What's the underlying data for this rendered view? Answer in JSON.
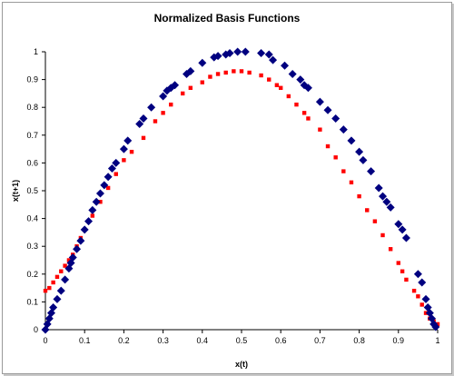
{
  "chart_data": {
    "type": "scatter",
    "title": "Normalized Basis Functions",
    "xlabel": "x(t)",
    "ylabel": "x(t+1)",
    "xlim": [
      0,
      1
    ],
    "ylim": [
      0,
      1
    ],
    "x_ticks": [
      "0",
      "0.1",
      "0.2",
      "0.3",
      "0.4",
      "0.5",
      "0.6",
      "0.7",
      "0.8",
      "0.9",
      "1"
    ],
    "y_ticks": [
      "0",
      "0.1",
      "0.2",
      "0.3",
      "0.4",
      "0.5",
      "0.6",
      "0.7",
      "0.8",
      "0.9",
      "1"
    ],
    "grid": false,
    "legend": "none",
    "series": [
      {
        "marker": "diamond",
        "color": "#000080",
        "points": [
          [
            0.0,
            0.0
          ],
          [
            0.005,
            0.02
          ],
          [
            0.01,
            0.04
          ],
          [
            0.015,
            0.06
          ],
          [
            0.02,
            0.08
          ],
          [
            0.03,
            0.11
          ],
          [
            0.04,
            0.14
          ],
          [
            0.05,
            0.18
          ],
          [
            0.06,
            0.22
          ],
          [
            0.065,
            0.24
          ],
          [
            0.07,
            0.26
          ],
          [
            0.08,
            0.29
          ],
          [
            0.09,
            0.32
          ],
          [
            0.1,
            0.36
          ],
          [
            0.11,
            0.39
          ],
          [
            0.12,
            0.43
          ],
          [
            0.13,
            0.46
          ],
          [
            0.14,
            0.49
          ],
          [
            0.15,
            0.52
          ],
          [
            0.16,
            0.55
          ],
          [
            0.17,
            0.58
          ],
          [
            0.18,
            0.6
          ],
          [
            0.2,
            0.65
          ],
          [
            0.21,
            0.68
          ],
          [
            0.24,
            0.74
          ],
          [
            0.25,
            0.76
          ],
          [
            0.27,
            0.8
          ],
          [
            0.3,
            0.84
          ],
          [
            0.31,
            0.86
          ],
          [
            0.32,
            0.87
          ],
          [
            0.33,
            0.88
          ],
          [
            0.36,
            0.92
          ],
          [
            0.37,
            0.93
          ],
          [
            0.4,
            0.96
          ],
          [
            0.43,
            0.98
          ],
          [
            0.44,
            0.985
          ],
          [
            0.46,
            0.99
          ],
          [
            0.47,
            0.995
          ],
          [
            0.49,
            1.0
          ],
          [
            0.51,
            1.0
          ],
          [
            0.55,
            0.995
          ],
          [
            0.57,
            0.99
          ],
          [
            0.58,
            0.97
          ],
          [
            0.61,
            0.95
          ],
          [
            0.63,
            0.92
          ],
          [
            0.65,
            0.9
          ],
          [
            0.66,
            0.88
          ],
          [
            0.67,
            0.87
          ],
          [
            0.7,
            0.82
          ],
          [
            0.72,
            0.79
          ],
          [
            0.74,
            0.76
          ],
          [
            0.76,
            0.72
          ],
          [
            0.78,
            0.68
          ],
          [
            0.8,
            0.64
          ],
          [
            0.81,
            0.61
          ],
          [
            0.83,
            0.57
          ],
          [
            0.85,
            0.51
          ],
          [
            0.86,
            0.48
          ],
          [
            0.87,
            0.46
          ],
          [
            0.88,
            0.44
          ],
          [
            0.9,
            0.38
          ],
          [
            0.91,
            0.36
          ],
          [
            0.92,
            0.33
          ],
          [
            0.95,
            0.2
          ],
          [
            0.96,
            0.17
          ],
          [
            0.97,
            0.11
          ],
          [
            0.975,
            0.08
          ],
          [
            0.98,
            0.06
          ],
          [
            0.985,
            0.04
          ],
          [
            0.99,
            0.02
          ],
          [
            0.995,
            0.01
          ]
        ]
      },
      {
        "marker": "square",
        "color": "#ff0000",
        "points": [
          [
            0.0,
            0.14
          ],
          [
            0.01,
            0.15
          ],
          [
            0.02,
            0.17
          ],
          [
            0.03,
            0.19
          ],
          [
            0.04,
            0.21
          ],
          [
            0.05,
            0.23
          ],
          [
            0.06,
            0.25
          ],
          [
            0.07,
            0.27
          ],
          [
            0.08,
            0.3
          ],
          [
            0.09,
            0.33
          ],
          [
            0.1,
            0.36
          ],
          [
            0.12,
            0.41
          ],
          [
            0.14,
            0.46
          ],
          [
            0.16,
            0.51
          ],
          [
            0.18,
            0.56
          ],
          [
            0.2,
            0.61
          ],
          [
            0.22,
            0.64
          ],
          [
            0.25,
            0.69
          ],
          [
            0.28,
            0.75
          ],
          [
            0.3,
            0.78
          ],
          [
            0.32,
            0.81
          ],
          [
            0.35,
            0.85
          ],
          [
            0.37,
            0.87
          ],
          [
            0.4,
            0.89
          ],
          [
            0.42,
            0.91
          ],
          [
            0.44,
            0.92
          ],
          [
            0.46,
            0.925
          ],
          [
            0.48,
            0.93
          ],
          [
            0.5,
            0.93
          ],
          [
            0.52,
            0.925
          ],
          [
            0.55,
            0.915
          ],
          [
            0.57,
            0.9
          ],
          [
            0.59,
            0.88
          ],
          [
            0.6,
            0.87
          ],
          [
            0.62,
            0.84
          ],
          [
            0.64,
            0.81
          ],
          [
            0.66,
            0.78
          ],
          [
            0.67,
            0.76
          ],
          [
            0.7,
            0.72
          ],
          [
            0.72,
            0.66
          ],
          [
            0.74,
            0.62
          ],
          [
            0.76,
            0.57
          ],
          [
            0.78,
            0.53
          ],
          [
            0.8,
            0.48
          ],
          [
            0.82,
            0.43
          ],
          [
            0.84,
            0.39
          ],
          [
            0.86,
            0.34
          ],
          [
            0.88,
            0.29
          ],
          [
            0.9,
            0.24
          ],
          [
            0.91,
            0.21
          ],
          [
            0.92,
            0.18
          ],
          [
            0.94,
            0.14
          ],
          [
            0.95,
            0.12
          ],
          [
            0.96,
            0.09
          ],
          [
            0.97,
            0.06
          ],
          [
            0.98,
            0.04
          ],
          [
            0.99,
            0.03
          ],
          [
            1.0,
            0.02
          ]
        ]
      }
    ]
  }
}
